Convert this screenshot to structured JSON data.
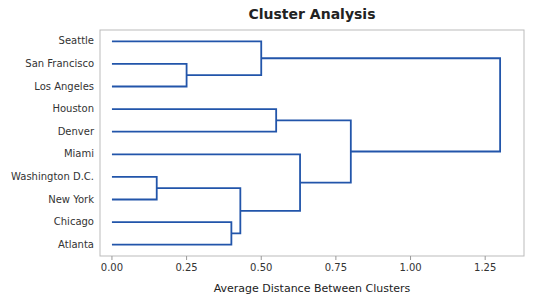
{
  "chart_data": {
    "type": "dendrogram",
    "title": "Cluster Analysis",
    "xlabel": "Average Distance Between Clusters",
    "color": "#2255aa",
    "categories": [
      "Seattle",
      "San Francisco",
      "Los Angeles",
      "Houston",
      "Denver",
      "Miami",
      "Washington D.C.",
      "New York",
      "Chicago",
      "Atlanta"
    ],
    "tree": {
      "value": 1.3,
      "children": [
        {
          "value": 0.5,
          "children": [
            "Seattle",
            {
              "value": 0.25,
              "children": [
                "San Francisco",
                "Los Angeles"
              ]
            }
          ]
        },
        {
          "value": 0.8,
          "children": [
            {
              "value": 0.55,
              "children": [
                "Houston",
                "Denver"
              ]
            },
            {
              "value": 0.63,
              "children": [
                "Miami",
                {
                  "value": 0.43,
                  "children": [
                    {
                      "value": 0.15,
                      "children": [
                        "Washington D.C.",
                        "New York"
                      ]
                    },
                    {
                      "value": 0.4,
                      "children": [
                        "Chicago",
                        "Atlanta"
                      ]
                    }
                  ]
                }
              ]
            }
          ]
        }
      ]
    },
    "xlim": [
      -0.04,
      1.38
    ],
    "xticks": [
      {
        "value": 0,
        "label": "0.00"
      },
      0.25,
      {
        "value": 0.5,
        "label": "0.50"
      },
      0.75,
      {
        "value": 1,
        "label": "1.00"
      },
      1.25
    ]
  }
}
